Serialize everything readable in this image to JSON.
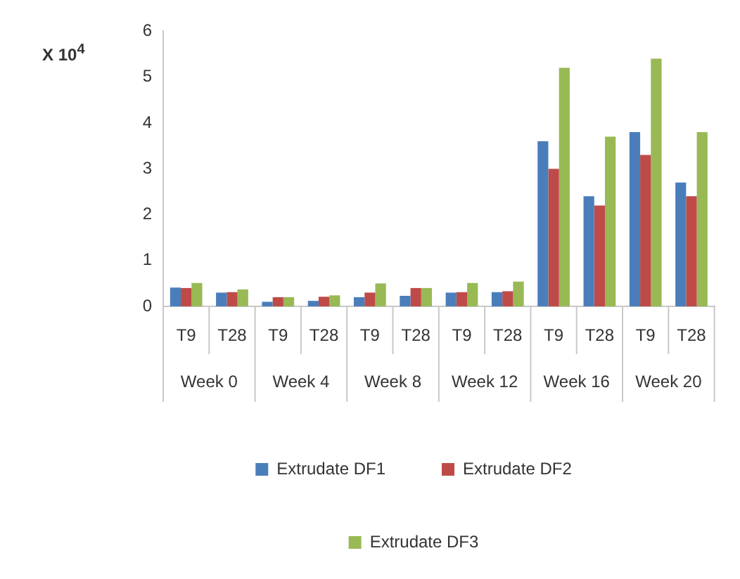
{
  "chart_data": {
    "type": "bar",
    "ylabel": "X 10$^{4}$",
    "categories": [
      "T9",
      "T28",
      "T9",
      "T28",
      "T9",
      "T28",
      "T9",
      "T28",
      "T9",
      "T28",
      "T9",
      "T28"
    ],
    "annotations": [
      "Week 0",
      "Week 4",
      "Week 8",
      "Week 12",
      "Week 16",
      "Week 20"
    ],
    "series": [
      {
        "name": "Extrudate DF1",
        "color": "#4a7ebb",
        "values": [
          0.41,
          0.3,
          0.1,
          0.12,
          0.2,
          0.23,
          0.3,
          0.31,
          3.6,
          2.4,
          3.8,
          2.7
        ]
      },
      {
        "name": "Extrudate DF2",
        "color": "#be4b48",
        "values": [
          0.4,
          0.31,
          0.2,
          0.21,
          0.3,
          0.4,
          0.31,
          0.33,
          3.0,
          2.2,
          3.3,
          2.4
        ]
      },
      {
        "name": "Extrudate DF3",
        "color": "#98b954",
        "values": [
          0.51,
          0.37,
          0.2,
          0.24,
          0.5,
          0.4,
          0.51,
          0.54,
          5.2,
          3.7,
          5.4,
          3.8
        ]
      }
    ],
    "ylim": [
      0,
      6
    ],
    "yticks": [
      0,
      1,
      2,
      3,
      4,
      5,
      6
    ],
    "grid": false,
    "legend": "bottom"
  }
}
